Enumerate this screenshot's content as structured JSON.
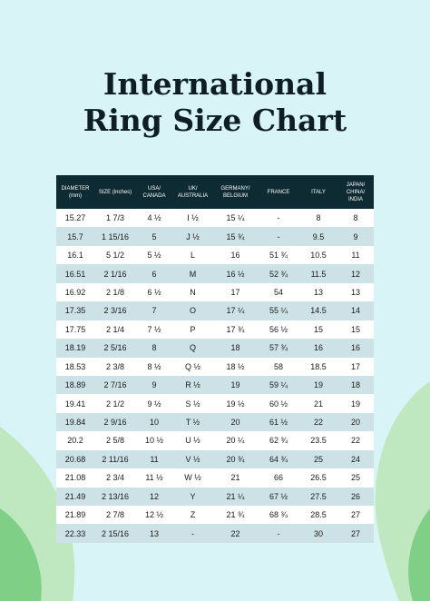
{
  "title": {
    "line1": "International",
    "line2": "Ring Size Chart"
  },
  "table": {
    "header": [
      "DIAMETER (mm)",
      "SIZE (inches)",
      "USA/ CANADA",
      "UK/ AUSTRALIA",
      "GERMANY/ BELGIUM",
      "FRANCE",
      "ITALY",
      "JAPAN/ CHINA/ INDIA"
    ],
    "rows": [
      [
        "15.27",
        "1 7/3",
        "4 ½",
        "I ½",
        "15 ¼",
        "-",
        "8",
        "8"
      ],
      [
        "15.7",
        "1 15/16",
        "5",
        "J ½",
        "15 ¾",
        "-",
        "9.5",
        "9"
      ],
      [
        "16.1",
        "5 1/2",
        "5 ½",
        "L",
        "16",
        "51 ¾",
        "10.5",
        "11"
      ],
      [
        "16.51",
        "2 1/16",
        "6",
        "M",
        "16 ½",
        "52 ¾",
        "11.5",
        "12"
      ],
      [
        "16.92",
        "2 1/8",
        "6 ½",
        "N",
        "17",
        "54",
        "13",
        "13"
      ],
      [
        "17.35",
        "2 3/16",
        "7",
        "O",
        "17 ¼",
        "55 ¼",
        "14.5",
        "14"
      ],
      [
        "17.75",
        "2 1/4",
        "7 ½",
        "P",
        "17 ¾",
        "56 ½",
        "15",
        "15"
      ],
      [
        "18.19",
        "2 5/16",
        "8",
        "Q",
        "18",
        "57 ¾",
        "16",
        "16"
      ],
      [
        "18.53",
        "2 3/8",
        "8 ½",
        "Q ½",
        "18 ½",
        "58",
        "18.5",
        "17"
      ],
      [
        "18.89",
        "2 7/16",
        "9",
        "R ½",
        "19",
        "59 ¼",
        "19",
        "18"
      ],
      [
        "19.41",
        "2 1/2",
        "9 ½",
        "S ½",
        "19 ½",
        "60 ½",
        "21",
        "19"
      ],
      [
        "19.84",
        "2 9/16",
        "10",
        "T ½",
        "20",
        "61 ½",
        "22",
        "20"
      ],
      [
        "20.2",
        "2 5/8",
        "10 ½",
        "U ½",
        "20 ¼",
        "62 ¾",
        "23.5",
        "22"
      ],
      [
        "20.68",
        "2 11/16",
        "11",
        "V ½",
        "20 ¾",
        "64 ¾",
        "25",
        "24"
      ],
      [
        "21.08",
        "2 3/4",
        "11 ½",
        "W ½",
        "21",
        "66",
        "26.5",
        "25"
      ],
      [
        "21.49",
        "2 13/16",
        "12",
        "Y",
        "21 ¼",
        "67 ½",
        "27.5",
        "26"
      ],
      [
        "21.89",
        "2 7/8",
        "12 ½",
        "Z",
        "21 ¾",
        "68 ¾",
        "28.5",
        "27"
      ],
      [
        "22.33",
        "2 15/16",
        "13",
        "-",
        "22",
        "-",
        "30",
        "27"
      ]
    ]
  }
}
